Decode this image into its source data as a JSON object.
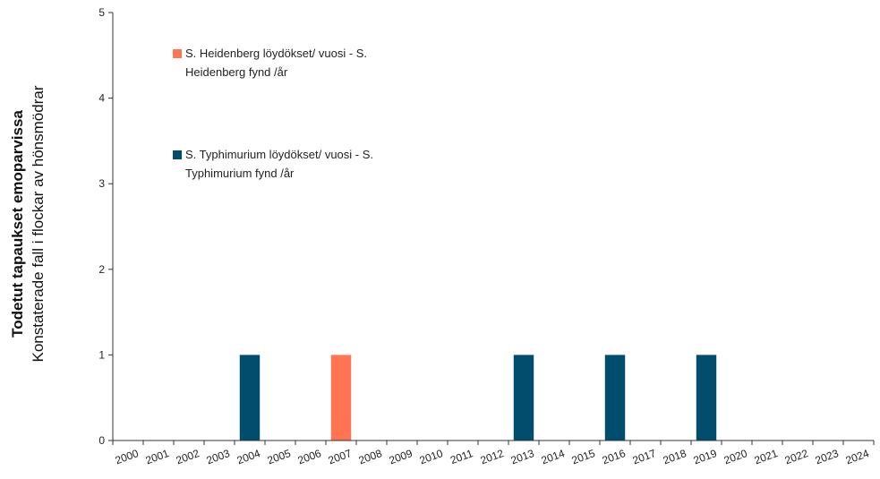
{
  "chart_data": {
    "type": "bar",
    "ylabel_line1": "Todetut tapaukset emoparvissa",
    "ylabel_line2": "Konstaterade fall i flockar av hönsmödrar",
    "ylim": [
      0,
      5
    ],
    "yticks": [
      "0",
      "1",
      "2",
      "3",
      "4",
      "5"
    ],
    "categories": [
      "2000",
      "2001",
      "2002",
      "2003",
      "2004",
      "2005",
      "2006",
      "2007",
      "2008",
      "2009",
      "2010",
      "2011",
      "2012",
      "2013",
      "2014",
      "2015",
      "2016",
      "2017",
      "2018",
      "2019",
      "2020",
      "2021",
      "2022",
      "2023",
      "2024"
    ],
    "series": [
      {
        "name": "S. Typhimurium löydökset/ vuosi - S. Typhimurium fynd /år",
        "legend_line1": "S. Typhimurium löydökset/ vuosi - S.",
        "legend_line2": "Typhimurium fynd /år",
        "color": "#004d6e",
        "values": [
          0,
          0,
          0,
          0,
          1,
          0,
          0,
          0,
          0,
          0,
          0,
          0,
          0,
          1,
          0,
          0,
          1,
          0,
          0,
          1,
          0,
          0,
          0,
          0,
          0
        ]
      },
      {
        "name": "S. Heidenberg löydökset/ vuosi - S. Heidenberg fynd /år",
        "legend_line1": "S. Heidenberg löydökset/ vuosi - S.",
        "legend_line2": "Heidenberg fynd /år",
        "color": "#ff7452",
        "values": [
          0,
          0,
          0,
          0,
          0,
          0,
          0,
          1,
          0,
          0,
          0,
          0,
          0,
          0,
          0,
          0,
          0,
          0,
          0,
          0,
          0,
          0,
          0,
          0,
          0
        ]
      }
    ],
    "grid": false,
    "legend_position": "top-left inside plot"
  }
}
